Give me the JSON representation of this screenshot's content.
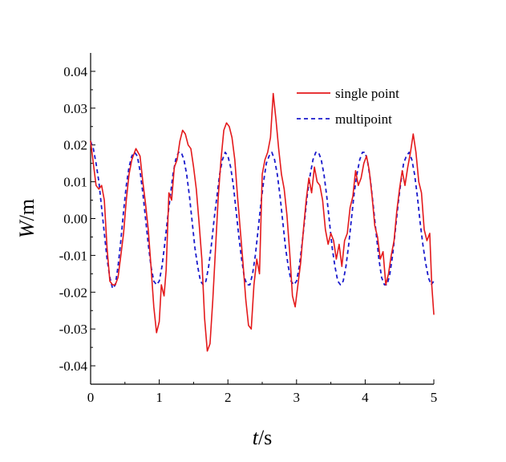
{
  "chart_data": {
    "type": "line",
    "title": "",
    "xlabel_italic": "t",
    "xlabel_rest": "/s",
    "ylabel_italic": "W",
    "ylabel_rest": "/m",
    "xlim": [
      0,
      5
    ],
    "ylim": [
      -0.045,
      0.045
    ],
    "grid": false,
    "legend_position": "top-right",
    "x_ticks": [
      0,
      1,
      2,
      3,
      4,
      5
    ],
    "x_tick_labels": [
      "0",
      "1",
      "2",
      "3",
      "4",
      "5"
    ],
    "y_ticks": [
      0.04,
      0.03,
      0.02,
      0.01,
      0.0,
      -0.01,
      -0.02,
      -0.03,
      -0.04
    ],
    "y_tick_labels": [
      "0.04",
      "0.03",
      "0.02",
      "0.01",
      "0.00",
      "-0.01",
      "-0.02",
      "-0.03",
      "-0.04"
    ],
    "series": [
      {
        "name": "single point",
        "color": "#e41a1c",
        "style": "solid",
        "points": [
          [
            0.0,
            0.021
          ],
          [
            0.04,
            0.015
          ],
          [
            0.08,
            0.009
          ],
          [
            0.12,
            0.008
          ],
          [
            0.16,
            0.009
          ],
          [
            0.2,
            0.005
          ],
          [
            0.24,
            -0.008
          ],
          [
            0.28,
            -0.017
          ],
          [
            0.32,
            -0.018
          ],
          [
            0.36,
            -0.018
          ],
          [
            0.4,
            -0.016
          ],
          [
            0.44,
            -0.01
          ],
          [
            0.48,
            -0.004
          ],
          [
            0.52,
            0.005
          ],
          [
            0.56,
            0.012
          ],
          [
            0.6,
            0.016
          ],
          [
            0.66,
            0.019
          ],
          [
            0.72,
            0.017
          ],
          [
            0.76,
            0.01
          ],
          [
            0.8,
            0.004
          ],
          [
            0.84,
            -0.003
          ],
          [
            0.88,
            -0.013
          ],
          [
            0.92,
            -0.024
          ],
          [
            0.96,
            -0.031
          ],
          [
            1.0,
            -0.028
          ],
          [
            1.03,
            -0.018
          ],
          [
            1.07,
            -0.021
          ],
          [
            1.1,
            -0.014
          ],
          [
            1.14,
            0.007
          ],
          [
            1.18,
            0.005
          ],
          [
            1.22,
            0.014
          ],
          [
            1.26,
            0.016
          ],
          [
            1.3,
            0.021
          ],
          [
            1.34,
            0.024
          ],
          [
            1.38,
            0.023
          ],
          [
            1.42,
            0.02
          ],
          [
            1.46,
            0.019
          ],
          [
            1.5,
            0.014
          ],
          [
            1.54,
            0.008
          ],
          [
            1.58,
            -0.001
          ],
          [
            1.62,
            -0.011
          ],
          [
            1.66,
            -0.027
          ],
          [
            1.7,
            -0.036
          ],
          [
            1.74,
            -0.034
          ],
          [
            1.78,
            -0.022
          ],
          [
            1.82,
            -0.008
          ],
          [
            1.86,
            0.006
          ],
          [
            1.9,
            0.016
          ],
          [
            1.94,
            0.024
          ],
          [
            1.98,
            0.026
          ],
          [
            2.02,
            0.025
          ],
          [
            2.06,
            0.022
          ],
          [
            2.1,
            0.016
          ],
          [
            2.14,
            0.006
          ],
          [
            2.18,
            -0.003
          ],
          [
            2.22,
            -0.012
          ],
          [
            2.26,
            -0.022
          ],
          [
            2.3,
            -0.029
          ],
          [
            2.34,
            -0.03
          ],
          [
            2.38,
            -0.018
          ],
          [
            2.42,
            -0.011
          ],
          [
            2.46,
            -0.015
          ],
          [
            2.5,
            0.012
          ],
          [
            2.54,
            0.016
          ],
          [
            2.58,
            0.018
          ],
          [
            2.62,
            0.022
          ],
          [
            2.66,
            0.034
          ],
          [
            2.7,
            0.027
          ],
          [
            2.74,
            0.019
          ],
          [
            2.78,
            0.012
          ],
          [
            2.82,
            0.008
          ],
          [
            2.86,
            0.001
          ],
          [
            2.9,
            -0.009
          ],
          [
            2.94,
            -0.021
          ],
          [
            2.98,
            -0.024
          ],
          [
            3.02,
            -0.018
          ],
          [
            3.06,
            -0.012
          ],
          [
            3.1,
            -0.003
          ],
          [
            3.14,
            0.005
          ],
          [
            3.18,
            0.011
          ],
          [
            3.22,
            0.007
          ],
          [
            3.26,
            0.014
          ],
          [
            3.3,
            0.01
          ],
          [
            3.34,
            0.009
          ],
          [
            3.38,
            0.005
          ],
          [
            3.42,
            -0.003
          ],
          [
            3.46,
            -0.007
          ],
          [
            3.5,
            -0.004
          ],
          [
            3.54,
            -0.006
          ],
          [
            3.58,
            -0.011
          ],
          [
            3.62,
            -0.007
          ],
          [
            3.66,
            -0.013
          ],
          [
            3.7,
            -0.006
          ],
          [
            3.74,
            -0.004
          ],
          [
            3.78,
            0.003
          ],
          [
            3.82,
            0.006
          ],
          [
            3.86,
            0.013
          ],
          [
            3.9,
            0.009
          ],
          [
            3.94,
            0.011
          ],
          [
            3.98,
            0.015
          ],
          [
            4.02,
            0.017
          ],
          [
            4.06,
            0.013
          ],
          [
            4.1,
            0.006
          ],
          [
            4.14,
            -0.002
          ],
          [
            4.18,
            -0.005
          ],
          [
            4.22,
            -0.011
          ],
          [
            4.26,
            -0.009
          ],
          [
            4.3,
            -0.018
          ],
          [
            4.34,
            -0.015
          ],
          [
            4.38,
            -0.01
          ],
          [
            4.42,
            -0.006
          ],
          [
            4.46,
            0.002
          ],
          [
            4.5,
            0.008
          ],
          [
            4.54,
            0.013
          ],
          [
            4.58,
            0.009
          ],
          [
            4.62,
            0.014
          ],
          [
            4.66,
            0.018
          ],
          [
            4.7,
            0.023
          ],
          [
            4.74,
            0.018
          ],
          [
            4.78,
            0.01
          ],
          [
            4.82,
            0.007
          ],
          [
            4.86,
            -0.003
          ],
          [
            4.9,
            -0.006
          ],
          [
            4.94,
            -0.004
          ],
          [
            4.97,
            -0.018
          ],
          [
            5.0,
            -0.026
          ]
        ]
      },
      {
        "name": "multipoint",
        "color": "#1a1acc",
        "style": "dashed",
        "points": [
          [
            0.0,
            0.021
          ],
          [
            0.04,
            0.019
          ],
          [
            0.08,
            0.015
          ],
          [
            0.12,
            0.01
          ],
          [
            0.16,
            0.003
          ],
          [
            0.2,
            -0.004
          ],
          [
            0.24,
            -0.011
          ],
          [
            0.28,
            -0.016
          ],
          [
            0.32,
            -0.019
          ],
          [
            0.36,
            -0.018
          ],
          [
            0.4,
            -0.013
          ],
          [
            0.44,
            -0.006
          ],
          [
            0.48,
            0.002
          ],
          [
            0.52,
            0.009
          ],
          [
            0.56,
            0.014
          ],
          [
            0.6,
            0.017
          ],
          [
            0.64,
            0.018
          ],
          [
            0.68,
            0.017
          ],
          [
            0.72,
            0.013
          ],
          [
            0.76,
            0.007
          ],
          [
            0.8,
            0.0
          ],
          [
            0.84,
            -0.007
          ],
          [
            0.88,
            -0.013
          ],
          [
            0.92,
            -0.017
          ],
          [
            0.96,
            -0.018
          ],
          [
            1.0,
            -0.017
          ],
          [
            1.04,
            -0.013
          ],
          [
            1.08,
            -0.007
          ],
          [
            1.12,
            0.0
          ],
          [
            1.16,
            0.006
          ],
          [
            1.2,
            0.012
          ],
          [
            1.24,
            0.016
          ],
          [
            1.28,
            0.018
          ],
          [
            1.32,
            0.018
          ],
          [
            1.36,
            0.016
          ],
          [
            1.4,
            0.012
          ],
          [
            1.44,
            0.006
          ],
          [
            1.48,
            -0.001
          ],
          [
            1.52,
            -0.008
          ],
          [
            1.56,
            -0.013
          ],
          [
            1.6,
            -0.017
          ],
          [
            1.64,
            -0.018
          ],
          [
            1.68,
            -0.017
          ],
          [
            1.72,
            -0.013
          ],
          [
            1.76,
            -0.007
          ],
          [
            1.8,
            0.0
          ],
          [
            1.84,
            0.006
          ],
          [
            1.88,
            0.012
          ],
          [
            1.92,
            0.016
          ],
          [
            1.96,
            0.018
          ],
          [
            2.0,
            0.017
          ],
          [
            2.04,
            0.014
          ],
          [
            2.08,
            0.009
          ],
          [
            2.12,
            0.002
          ],
          [
            2.16,
            -0.005
          ],
          [
            2.2,
            -0.011
          ],
          [
            2.24,
            -0.016
          ],
          [
            2.28,
            -0.018
          ],
          [
            2.32,
            -0.018
          ],
          [
            2.36,
            -0.015
          ],
          [
            2.4,
            -0.01
          ],
          [
            2.44,
            -0.003
          ],
          [
            2.48,
            0.004
          ],
          [
            2.52,
            0.01
          ],
          [
            2.56,
            0.015
          ],
          [
            2.6,
            0.017
          ],
          [
            2.64,
            0.018
          ],
          [
            2.68,
            0.016
          ],
          [
            2.72,
            0.012
          ],
          [
            2.76,
            0.006
          ],
          [
            2.8,
            -0.001
          ],
          [
            2.84,
            -0.008
          ],
          [
            2.88,
            -0.013
          ],
          [
            2.92,
            -0.017
          ],
          [
            2.96,
            -0.018
          ],
          [
            3.0,
            -0.017
          ],
          [
            3.04,
            -0.013
          ],
          [
            3.08,
            -0.007
          ],
          [
            3.12,
            0.0
          ],
          [
            3.16,
            0.007
          ],
          [
            3.2,
            0.012
          ],
          [
            3.24,
            0.016
          ],
          [
            3.28,
            0.018
          ],
          [
            3.32,
            0.018
          ],
          [
            3.36,
            0.016
          ],
          [
            3.4,
            0.012
          ],
          [
            3.44,
            0.006
          ],
          [
            3.48,
            -0.001
          ],
          [
            3.52,
            -0.008
          ],
          [
            3.56,
            -0.013
          ],
          [
            3.6,
            -0.017
          ],
          [
            3.64,
            -0.018
          ],
          [
            3.68,
            -0.017
          ],
          [
            3.72,
            -0.013
          ],
          [
            3.76,
            -0.007
          ],
          [
            3.8,
            0.0
          ],
          [
            3.84,
            0.007
          ],
          [
            3.88,
            0.012
          ],
          [
            3.92,
            0.016
          ],
          [
            3.96,
            0.018
          ],
          [
            4.0,
            0.018
          ],
          [
            4.04,
            0.015
          ],
          [
            4.08,
            0.01
          ],
          [
            4.12,
            0.003
          ],
          [
            4.16,
            -0.004
          ],
          [
            4.2,
            -0.011
          ],
          [
            4.24,
            -0.016
          ],
          [
            4.28,
            -0.018
          ],
          [
            4.32,
            -0.018
          ],
          [
            4.36,
            -0.015
          ],
          [
            4.4,
            -0.01
          ],
          [
            4.44,
            -0.003
          ],
          [
            4.48,
            0.004
          ],
          [
            4.52,
            0.01
          ],
          [
            4.56,
            0.015
          ],
          [
            4.6,
            0.017
          ],
          [
            4.64,
            0.018
          ],
          [
            4.68,
            0.016
          ],
          [
            4.72,
            0.012
          ],
          [
            4.76,
            0.006
          ],
          [
            4.8,
            -0.001
          ],
          [
            4.84,
            -0.007
          ],
          [
            4.88,
            -0.012
          ],
          [
            4.92,
            -0.016
          ],
          [
            4.96,
            -0.018
          ],
          [
            5.0,
            -0.017
          ]
        ]
      }
    ]
  }
}
